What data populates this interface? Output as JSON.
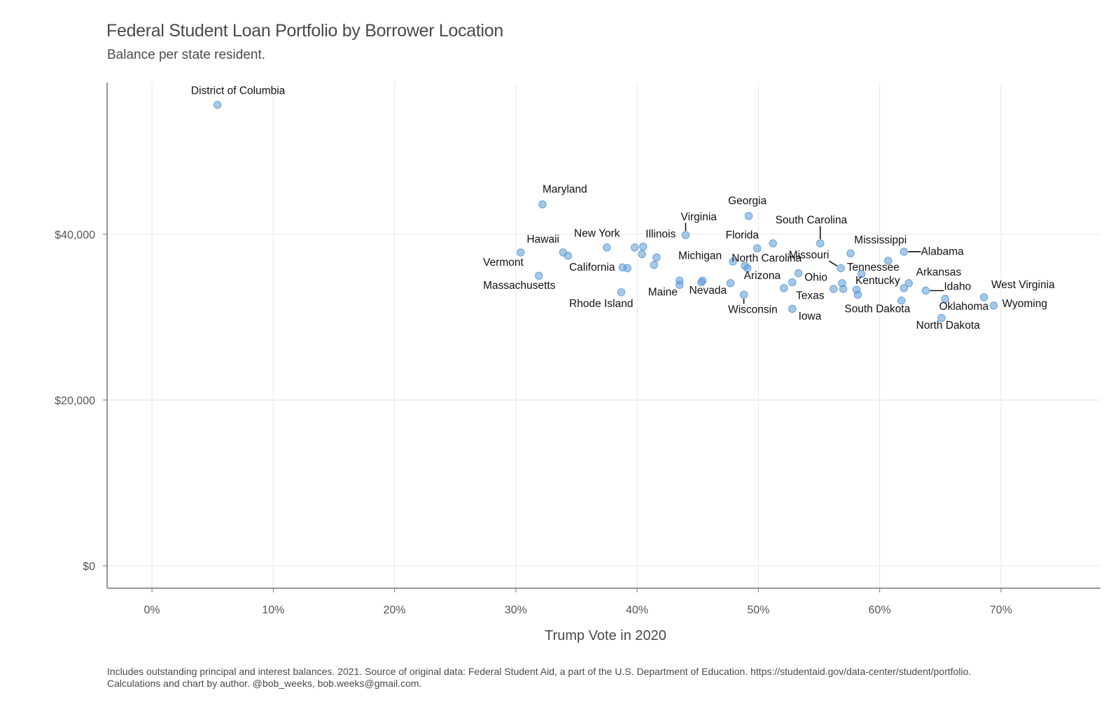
{
  "chart_data": {
    "type": "scatter",
    "title": "Federal Student Loan Portfolio by Borrower Location",
    "subtitle": "Balance per state resident.",
    "xlabel": "Trump Vote in 2020",
    "ylabel": "",
    "caption": "Includes outstanding principal and interest balances. 2021. Source of original data: Federal Student Aid, a part of the U.S. Department of Education. https://studentaid.gov/data-center/student/portfolio. Calculations and chart by author. @bob_weeks, bob.weeks@gmail.com.",
    "xlim": [
      -3.7,
      78.2
    ],
    "ylim": [
      -2700,
      58300
    ],
    "x_ticks": [
      0,
      10,
      20,
      30,
      40,
      50,
      60,
      70
    ],
    "x_tick_labels": [
      "0%",
      "10%",
      "20%",
      "30%",
      "40%",
      "50%",
      "60%",
      "70%"
    ],
    "y_ticks": [
      0,
      20000,
      40000
    ],
    "y_tick_labels": [
      "$0",
      "$20,000",
      "$40,000"
    ],
    "grid": true,
    "point_color": "#5b9bd5",
    "points": [
      {
        "x": 5.4,
        "y": 55600,
        "label": "District of Columbia",
        "lx": 7.1,
        "ly": 56900,
        "anchor": "middle"
      },
      {
        "x": 32.2,
        "y": 43600,
        "label": "Maryland",
        "lx": 32.2,
        "ly": 45000,
        "anchor": "start"
      },
      {
        "x": 44.0,
        "y": 39900,
        "label": "Virginia",
        "lx": 43.6,
        "ly": 41700,
        "anchor": "start",
        "line": true
      },
      {
        "x": 49.2,
        "y": 42200,
        "label": "Georgia",
        "lx": 47.5,
        "ly": 43600,
        "anchor": "start"
      },
      {
        "x": 55.1,
        "y": 38900,
        "label": "South Carolina",
        "lx": 51.4,
        "ly": 41300,
        "anchor": "start",
        "line": true
      },
      {
        "x": 51.2,
        "y": 38900,
        "label": "Florida",
        "lx": 47.3,
        "ly": 39500,
        "anchor": "start"
      },
      {
        "x": 57.6,
        "y": 37700,
        "label": "Mississippi",
        "lx": 57.9,
        "ly": 38900,
        "anchor": "start"
      },
      {
        "x": 62.0,
        "y": 37900,
        "label": "Alabama",
        "lx": 63.4,
        "ly": 37500,
        "anchor": "start",
        "line": true
      },
      {
        "x": 30.4,
        "y": 37800,
        "label": "Hawaii",
        "lx": 30.9,
        "ly": 39000,
        "anchor": "start"
      },
      {
        "x": 37.5,
        "y": 38400,
        "label": "New York",
        "lx": 34.8,
        "ly": 39700,
        "anchor": "start"
      },
      {
        "x": 40.5,
        "y": 38500,
        "label": "Illinois",
        "lx": 40.7,
        "ly": 39600,
        "anchor": "start"
      },
      {
        "x": 56.8,
        "y": 35900,
        "label": "Missouri",
        "lx": 52.5,
        "ly": 37100,
        "anchor": "start",
        "line": true
      },
      {
        "x": 49.9,
        "y": 38300,
        "label": "Michigan",
        "lx": 43.4,
        "ly": 37000,
        "anchor": "start"
      },
      {
        "x": 49.1,
        "y": 35900,
        "label": "North Carolina",
        "lx": 47.8,
        "ly": 36700,
        "anchor": "start"
      },
      {
        "x": 58.5,
        "y": 35200,
        "label": "Tennessee",
        "lx": 57.3,
        "ly": 35600,
        "anchor": "start"
      },
      {
        "x": 31.9,
        "y": 35000,
        "label": "Vermont",
        "lx": 27.3,
        "ly": 36200,
        "anchor": "start"
      },
      {
        "x": 38.8,
        "y": 36000,
        "label": "California",
        "lx": 34.4,
        "ly": 35600,
        "anchor": "start"
      },
      {
        "x": 62.4,
        "y": 34100,
        "label": "Arkansas",
        "lx": 63.0,
        "ly": 35000,
        "anchor": "start"
      },
      {
        "x": 52.8,
        "y": 34200,
        "label": "Arizona",
        "lx": 48.8,
        "ly": 34600,
        "anchor": "start"
      },
      {
        "x": 53.3,
        "y": 35300,
        "label": "Ohio",
        "lx": 53.8,
        "ly": 34400,
        "anchor": "start"
      },
      {
        "x": 58.1,
        "y": 33300,
        "label": "Kentucky",
        "lx": 58.0,
        "ly": 34000,
        "anchor": "start"
      },
      {
        "x": 68.6,
        "y": 32400,
        "label": "West Virginia",
        "lx": 69.2,
        "ly": 33500,
        "anchor": "start"
      },
      {
        "x": 63.8,
        "y": 33200,
        "label": "Idaho",
        "lx": 65.3,
        "ly": 33300,
        "anchor": "start",
        "line": true
      },
      {
        "x": 31.9,
        "y": 35000,
        "label": "Massachusetts",
        "lx": 27.3,
        "ly": 33400,
        "anchor": "start",
        "nodot": true
      },
      {
        "x": 43.5,
        "y": 34400,
        "label": "Maine",
        "lx": 40.9,
        "ly": 32600,
        "anchor": "start"
      },
      {
        "x": 45.4,
        "y": 34400,
        "label": "Nevada",
        "lx": 44.3,
        "ly": 32800,
        "anchor": "start"
      },
      {
        "x": 52.1,
        "y": 33500,
        "label": "Texas",
        "lx": 53.1,
        "ly": 32200,
        "anchor": "start"
      },
      {
        "x": 38.7,
        "y": 33000,
        "label": "Rhode Island",
        "lx": 34.4,
        "ly": 31200,
        "anchor": "start"
      },
      {
        "x": 69.4,
        "y": 31400,
        "label": "Wyoming",
        "lx": 70.1,
        "ly": 31200,
        "anchor": "start"
      },
      {
        "x": 65.4,
        "y": 32200,
        "label": "Oklahoma",
        "lx": 64.9,
        "ly": 30900,
        "anchor": "start"
      },
      {
        "x": 48.8,
        "y": 32700,
        "label": "Wisconsin",
        "lx": 47.5,
        "ly": 30500,
        "anchor": "start",
        "line": true
      },
      {
        "x": 61.8,
        "y": 32000,
        "label": "South Dakota",
        "lx": 57.1,
        "ly": 30600,
        "anchor": "start"
      },
      {
        "x": 52.8,
        "y": 31000,
        "label": "Iowa",
        "lx": 53.3,
        "ly": 29700,
        "anchor": "start"
      },
      {
        "x": 65.1,
        "y": 29900,
        "label": "North Dakota",
        "lx": 63.0,
        "ly": 28600,
        "anchor": "start"
      },
      {
        "x": 33.9,
        "y": 37800,
        "label": ""
      },
      {
        "x": 34.3,
        "y": 37400,
        "label": ""
      },
      {
        "x": 39.8,
        "y": 38400,
        "label": ""
      },
      {
        "x": 40.4,
        "y": 37600,
        "label": ""
      },
      {
        "x": 41.6,
        "y": 37200,
        "label": ""
      },
      {
        "x": 41.4,
        "y": 36300,
        "label": ""
      },
      {
        "x": 39.2,
        "y": 35900,
        "label": ""
      },
      {
        "x": 43.5,
        "y": 33900,
        "label": ""
      },
      {
        "x": 45.3,
        "y": 34200,
        "label": ""
      },
      {
        "x": 47.7,
        "y": 34100,
        "label": ""
      },
      {
        "x": 47.9,
        "y": 36700,
        "label": ""
      },
      {
        "x": 48.9,
        "y": 36200,
        "label": ""
      },
      {
        "x": 56.9,
        "y": 34100,
        "label": ""
      },
      {
        "x": 57.0,
        "y": 33400,
        "label": ""
      },
      {
        "x": 56.2,
        "y": 33400,
        "label": ""
      },
      {
        "x": 58.2,
        "y": 32700,
        "label": ""
      },
      {
        "x": 60.7,
        "y": 36800,
        "label": ""
      },
      {
        "x": 62.0,
        "y": 33500,
        "label": ""
      }
    ]
  }
}
